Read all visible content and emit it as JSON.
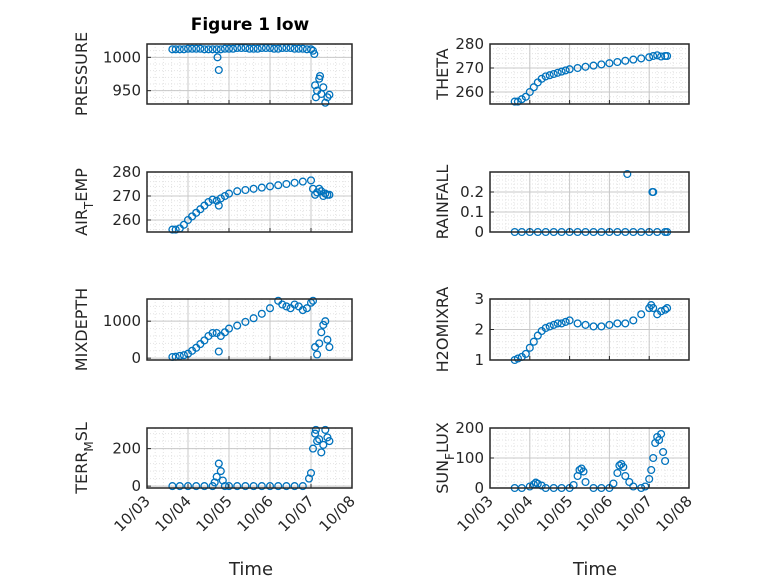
{
  "title": "Figure 1 low",
  "colors": {
    "marker": "#0072BD",
    "axis": "#262626",
    "grid": "#c8c8c8",
    "background": "#ffffff"
  },
  "chart_data": [
    {
      "type": "scatter",
      "id": "pressure",
      "ylabel": "PRESSURE",
      "ylabel_sub": "",
      "ylim": [
        930,
        1020
      ],
      "yticks": [
        950,
        1000
      ],
      "ytick_labels": [
        "950",
        "1000"
      ],
      "xticks": [
        "10/03",
        "10/04",
        "10/05",
        "10/06",
        "10/07",
        "10/08"
      ],
      "grid": true,
      "show_xticklabels": false,
      "series": [
        {
          "x": [
            3.62,
            3.7,
            3.8,
            3.9,
            4.0,
            4.1,
            4.2,
            4.3,
            4.4,
            4.5,
            4.6,
            4.7,
            4.72,
            4.75,
            4.8,
            4.9,
            5.0,
            5.1,
            5.2,
            5.3,
            5.4,
            5.5,
            5.6,
            5.7,
            5.8,
            5.9,
            6.0,
            6.1,
            6.2,
            6.3,
            6.4,
            6.5,
            6.6,
            6.7,
            6.8,
            6.9,
            7.0,
            7.05,
            7.08,
            7.1,
            7.12,
            7.15,
            7.2,
            7.22,
            7.25,
            7.3,
            7.35,
            7.4,
            7.45
          ],
          "y": [
            1012,
            1012,
            1012,
            1012,
            1013,
            1013,
            1013,
            1013,
            1012,
            1012,
            1012,
            1012,
            1000,
            981,
            1012,
            1013,
            1013,
            1013,
            1014,
            1014,
            1014,
            1013,
            1013,
            1013,
            1014,
            1014,
            1014,
            1013,
            1013,
            1014,
            1014,
            1014,
            1013,
            1013,
            1013,
            1012,
            1012,
            1010,
            1005,
            958,
            940,
            950,
            968,
            972,
            945,
            955,
            932,
            940,
            944
          ]
        }
      ]
    },
    {
      "type": "scatter",
      "id": "theta",
      "ylabel": "THETA",
      "ylabel_sub": "",
      "ylim": [
        255,
        280
      ],
      "yticks": [
        260,
        270,
        280
      ],
      "ytick_labels": [
        "260",
        "270",
        "280"
      ],
      "xticks": [
        "10/03",
        "10/04",
        "10/05",
        "10/06",
        "10/07",
        "10/08"
      ],
      "grid": true,
      "show_xticklabels": false,
      "series": [
        {
          "x": [
            3.62,
            3.7,
            3.8,
            3.9,
            4.0,
            4.1,
            4.2,
            4.3,
            4.4,
            4.5,
            4.6,
            4.7,
            4.8,
            4.9,
            5.0,
            5.2,
            5.4,
            5.6,
            5.8,
            6.0,
            6.2,
            6.4,
            6.6,
            6.8,
            7.0,
            7.1,
            7.2,
            7.3,
            7.4,
            7.45
          ],
          "y": [
            256,
            256,
            257,
            258,
            260,
            262,
            264,
            265.5,
            266.5,
            267,
            267.5,
            268,
            268.5,
            269,
            269.5,
            270,
            270.5,
            271,
            271.5,
            272,
            272.5,
            273,
            273.5,
            274,
            274.5,
            275,
            275.3,
            274.8,
            275,
            275
          ]
        }
      ]
    },
    {
      "type": "scatter",
      "id": "air-temp",
      "ylabel": "AIR",
      "ylabel_sub": "T",
      "ylabel_rest": "EMP",
      "ylim": [
        255,
        280
      ],
      "yticks": [
        260,
        270,
        280
      ],
      "ytick_labels": [
        "260",
        "270",
        "280"
      ],
      "xticks": [
        "10/03",
        "10/04",
        "10/05",
        "10/06",
        "10/07",
        "10/08"
      ],
      "grid": true,
      "show_xticklabels": false,
      "series": [
        {
          "x": [
            3.62,
            3.7,
            3.8,
            3.9,
            4.0,
            4.1,
            4.2,
            4.3,
            4.4,
            4.5,
            4.6,
            4.7,
            4.75,
            4.8,
            4.9,
            5.0,
            5.2,
            5.4,
            5.6,
            5.8,
            6.0,
            6.2,
            6.4,
            6.6,
            6.8,
            7.0,
            7.05,
            7.1,
            7.15,
            7.2,
            7.25,
            7.3,
            7.35,
            7.4,
            7.45
          ],
          "y": [
            256,
            256,
            256.5,
            258,
            260,
            261.5,
            263,
            264.5,
            266,
            267.5,
            268.5,
            268,
            266,
            269,
            270,
            271,
            272,
            272.5,
            273,
            273.5,
            274,
            274.5,
            275,
            275.5,
            276,
            276.5,
            273,
            270.5,
            271.5,
            273,
            272,
            270,
            271,
            270.5,
            270.5
          ]
        }
      ]
    },
    {
      "type": "scatter",
      "id": "rainfall",
      "ylabel": "RAINFALL",
      "ylabel_sub": "",
      "ylim": [
        0,
        0.3
      ],
      "yticks": [
        0,
        0.1,
        0.2
      ],
      "ytick_labels": [
        "0",
        "0.1",
        "0.2"
      ],
      "xticks": [
        "10/03",
        "10/04",
        "10/05",
        "10/06",
        "10/07",
        "10/08"
      ],
      "grid": true,
      "show_xticklabels": false,
      "series": [
        {
          "x": [
            3.62,
            3.8,
            4.0,
            4.2,
            4.4,
            4.6,
            4.8,
            5.0,
            5.2,
            5.4,
            5.6,
            5.8,
            6.0,
            6.2,
            6.4,
            6.6,
            6.8,
            7.0,
            7.2,
            7.4,
            7.45,
            6.45,
            7.08,
            7.1
          ],
          "y": [
            0,
            0,
            0,
            0,
            0,
            0,
            0,
            0,
            0,
            0,
            0,
            0,
            0,
            0,
            0,
            0,
            0,
            0,
            0,
            0,
            0,
            0.29,
            0.2,
            0.2
          ]
        }
      ]
    },
    {
      "type": "scatter",
      "id": "mixdepth",
      "ylabel": "MIXDEPTH",
      "ylabel_sub": "",
      "ylim": [
        -50,
        1600
      ],
      "yticks": [
        0,
        1000
      ],
      "ytick_labels": [
        "0",
        "1000"
      ],
      "xticks": [
        "10/03",
        "10/04",
        "10/05",
        "10/06",
        "10/07",
        "10/08"
      ],
      "grid": true,
      "show_xticklabels": false,
      "series": [
        {
          "x": [
            3.62,
            3.7,
            3.8,
            3.9,
            4.0,
            4.1,
            4.2,
            4.3,
            4.4,
            4.5,
            4.6,
            4.7,
            4.75,
            4.8,
            4.9,
            5.0,
            5.2,
            5.4,
            5.6,
            5.8,
            6.0,
            6.2,
            6.3,
            6.4,
            6.5,
            6.6,
            6.7,
            6.8,
            6.9,
            7.0,
            7.05,
            7.1,
            7.15,
            7.2,
            7.25,
            7.3,
            7.35,
            7.4,
            7.45
          ],
          "y": [
            30,
            40,
            60,
            80,
            120,
            200,
            280,
            380,
            480,
            600,
            680,
            680,
            180,
            600,
            700,
            800,
            880,
            980,
            1080,
            1200,
            1350,
            1550,
            1450,
            1400,
            1350,
            1450,
            1400,
            1300,
            1350,
            1500,
            1550,
            300,
            100,
            400,
            700,
            900,
            1000,
            500,
            300
          ]
        }
      ]
    },
    {
      "type": "scatter",
      "id": "h2omixra",
      "ylabel": "H2OMIXRA",
      "ylabel_sub": "",
      "ylim": [
        1,
        3
      ],
      "yticks": [
        1,
        2,
        3
      ],
      "ytick_labels": [
        "1",
        "2",
        "3"
      ],
      "xticks": [
        "10/03",
        "10/04",
        "10/05",
        "10/06",
        "10/07",
        "10/08"
      ],
      "grid": true,
      "show_xticklabels": false,
      "series": [
        {
          "x": [
            3.62,
            3.7,
            3.8,
            3.9,
            4.0,
            4.1,
            4.2,
            4.3,
            4.4,
            4.5,
            4.6,
            4.7,
            4.8,
            4.9,
            5.0,
            5.2,
            5.4,
            5.6,
            5.8,
            6.0,
            6.2,
            6.4,
            6.6,
            6.8,
            7.0,
            7.05,
            7.1,
            7.2,
            7.3,
            7.4,
            7.45
          ],
          "y": [
            1.0,
            1.05,
            1.1,
            1.2,
            1.4,
            1.6,
            1.8,
            1.95,
            2.05,
            2.1,
            2.15,
            2.2,
            2.2,
            2.25,
            2.3,
            2.2,
            2.15,
            2.1,
            2.1,
            2.15,
            2.2,
            2.2,
            2.3,
            2.5,
            2.7,
            2.8,
            2.7,
            2.5,
            2.6,
            2.65,
            2.7
          ]
        }
      ]
    },
    {
      "type": "scatter",
      "id": "terr-msl",
      "ylabel": "TERR",
      "ylabel_sub": "M",
      "ylabel_rest": "SL",
      "ylim": [
        -10,
        310
      ],
      "yticks": [
        0,
        200
      ],
      "ytick_labels": [
        "0",
        "200"
      ],
      "xticks": [
        "10/03",
        "10/04",
        "10/05",
        "10/06",
        "10/07",
        "10/08"
      ],
      "grid": true,
      "show_xticklabels": true,
      "series": [
        {
          "x": [
            3.62,
            3.8,
            4.0,
            4.2,
            4.4,
            4.6,
            4.65,
            4.7,
            4.75,
            4.8,
            4.85,
            4.9,
            5.0,
            5.2,
            5.4,
            5.6,
            5.8,
            6.0,
            6.2,
            6.4,
            6.6,
            6.8,
            6.95,
            7.0,
            7.05,
            7.1,
            7.12,
            7.15,
            7.2,
            7.25,
            7.3,
            7.35,
            7.4,
            7.45
          ],
          "y": [
            0,
            0,
            0,
            0,
            0,
            0,
            20,
            50,
            120,
            80,
            30,
            0,
            0,
            0,
            0,
            0,
            0,
            0,
            0,
            0,
            0,
            0,
            40,
            70,
            200,
            280,
            300,
            240,
            250,
            180,
            220,
            300,
            260,
            240
          ]
        }
      ]
    },
    {
      "type": "scatter",
      "id": "sun-flux",
      "ylabel": "SUN",
      "ylabel_sub": "F",
      "ylabel_rest": "LUX",
      "ylim": [
        0,
        200
      ],
      "yticks": [
        0,
        100,
        200
      ],
      "ytick_labels": [
        "0",
        "100",
        "200"
      ],
      "xticks": [
        "10/03",
        "10/04",
        "10/05",
        "10/06",
        "10/07",
        "10/08"
      ],
      "grid": true,
      "show_xticklabels": true,
      "series": [
        {
          "x": [
            3.62,
            3.8,
            4.0,
            4.1,
            4.15,
            4.2,
            4.3,
            4.4,
            4.6,
            4.8,
            5.0,
            5.1,
            5.2,
            5.25,
            5.3,
            5.35,
            5.4,
            5.6,
            5.8,
            6.0,
            6.1,
            6.2,
            6.25,
            6.3,
            6.35,
            6.4,
            6.5,
            6.6,
            6.8,
            6.9,
            7.0,
            7.05,
            7.1,
            7.15,
            7.2,
            7.25,
            7.3,
            7.35,
            7.4
          ],
          "y": [
            0,
            0,
            5,
            12,
            18,
            14,
            8,
            0,
            0,
            0,
            0,
            10,
            40,
            60,
            65,
            55,
            20,
            0,
            0,
            0,
            15,
            50,
            75,
            80,
            70,
            40,
            20,
            5,
            0,
            5,
            30,
            60,
            100,
            150,
            170,
            160,
            180,
            120,
            90
          ]
        }
      ]
    }
  ],
  "xlabel_left": "Time",
  "xlabel_right": "Time"
}
